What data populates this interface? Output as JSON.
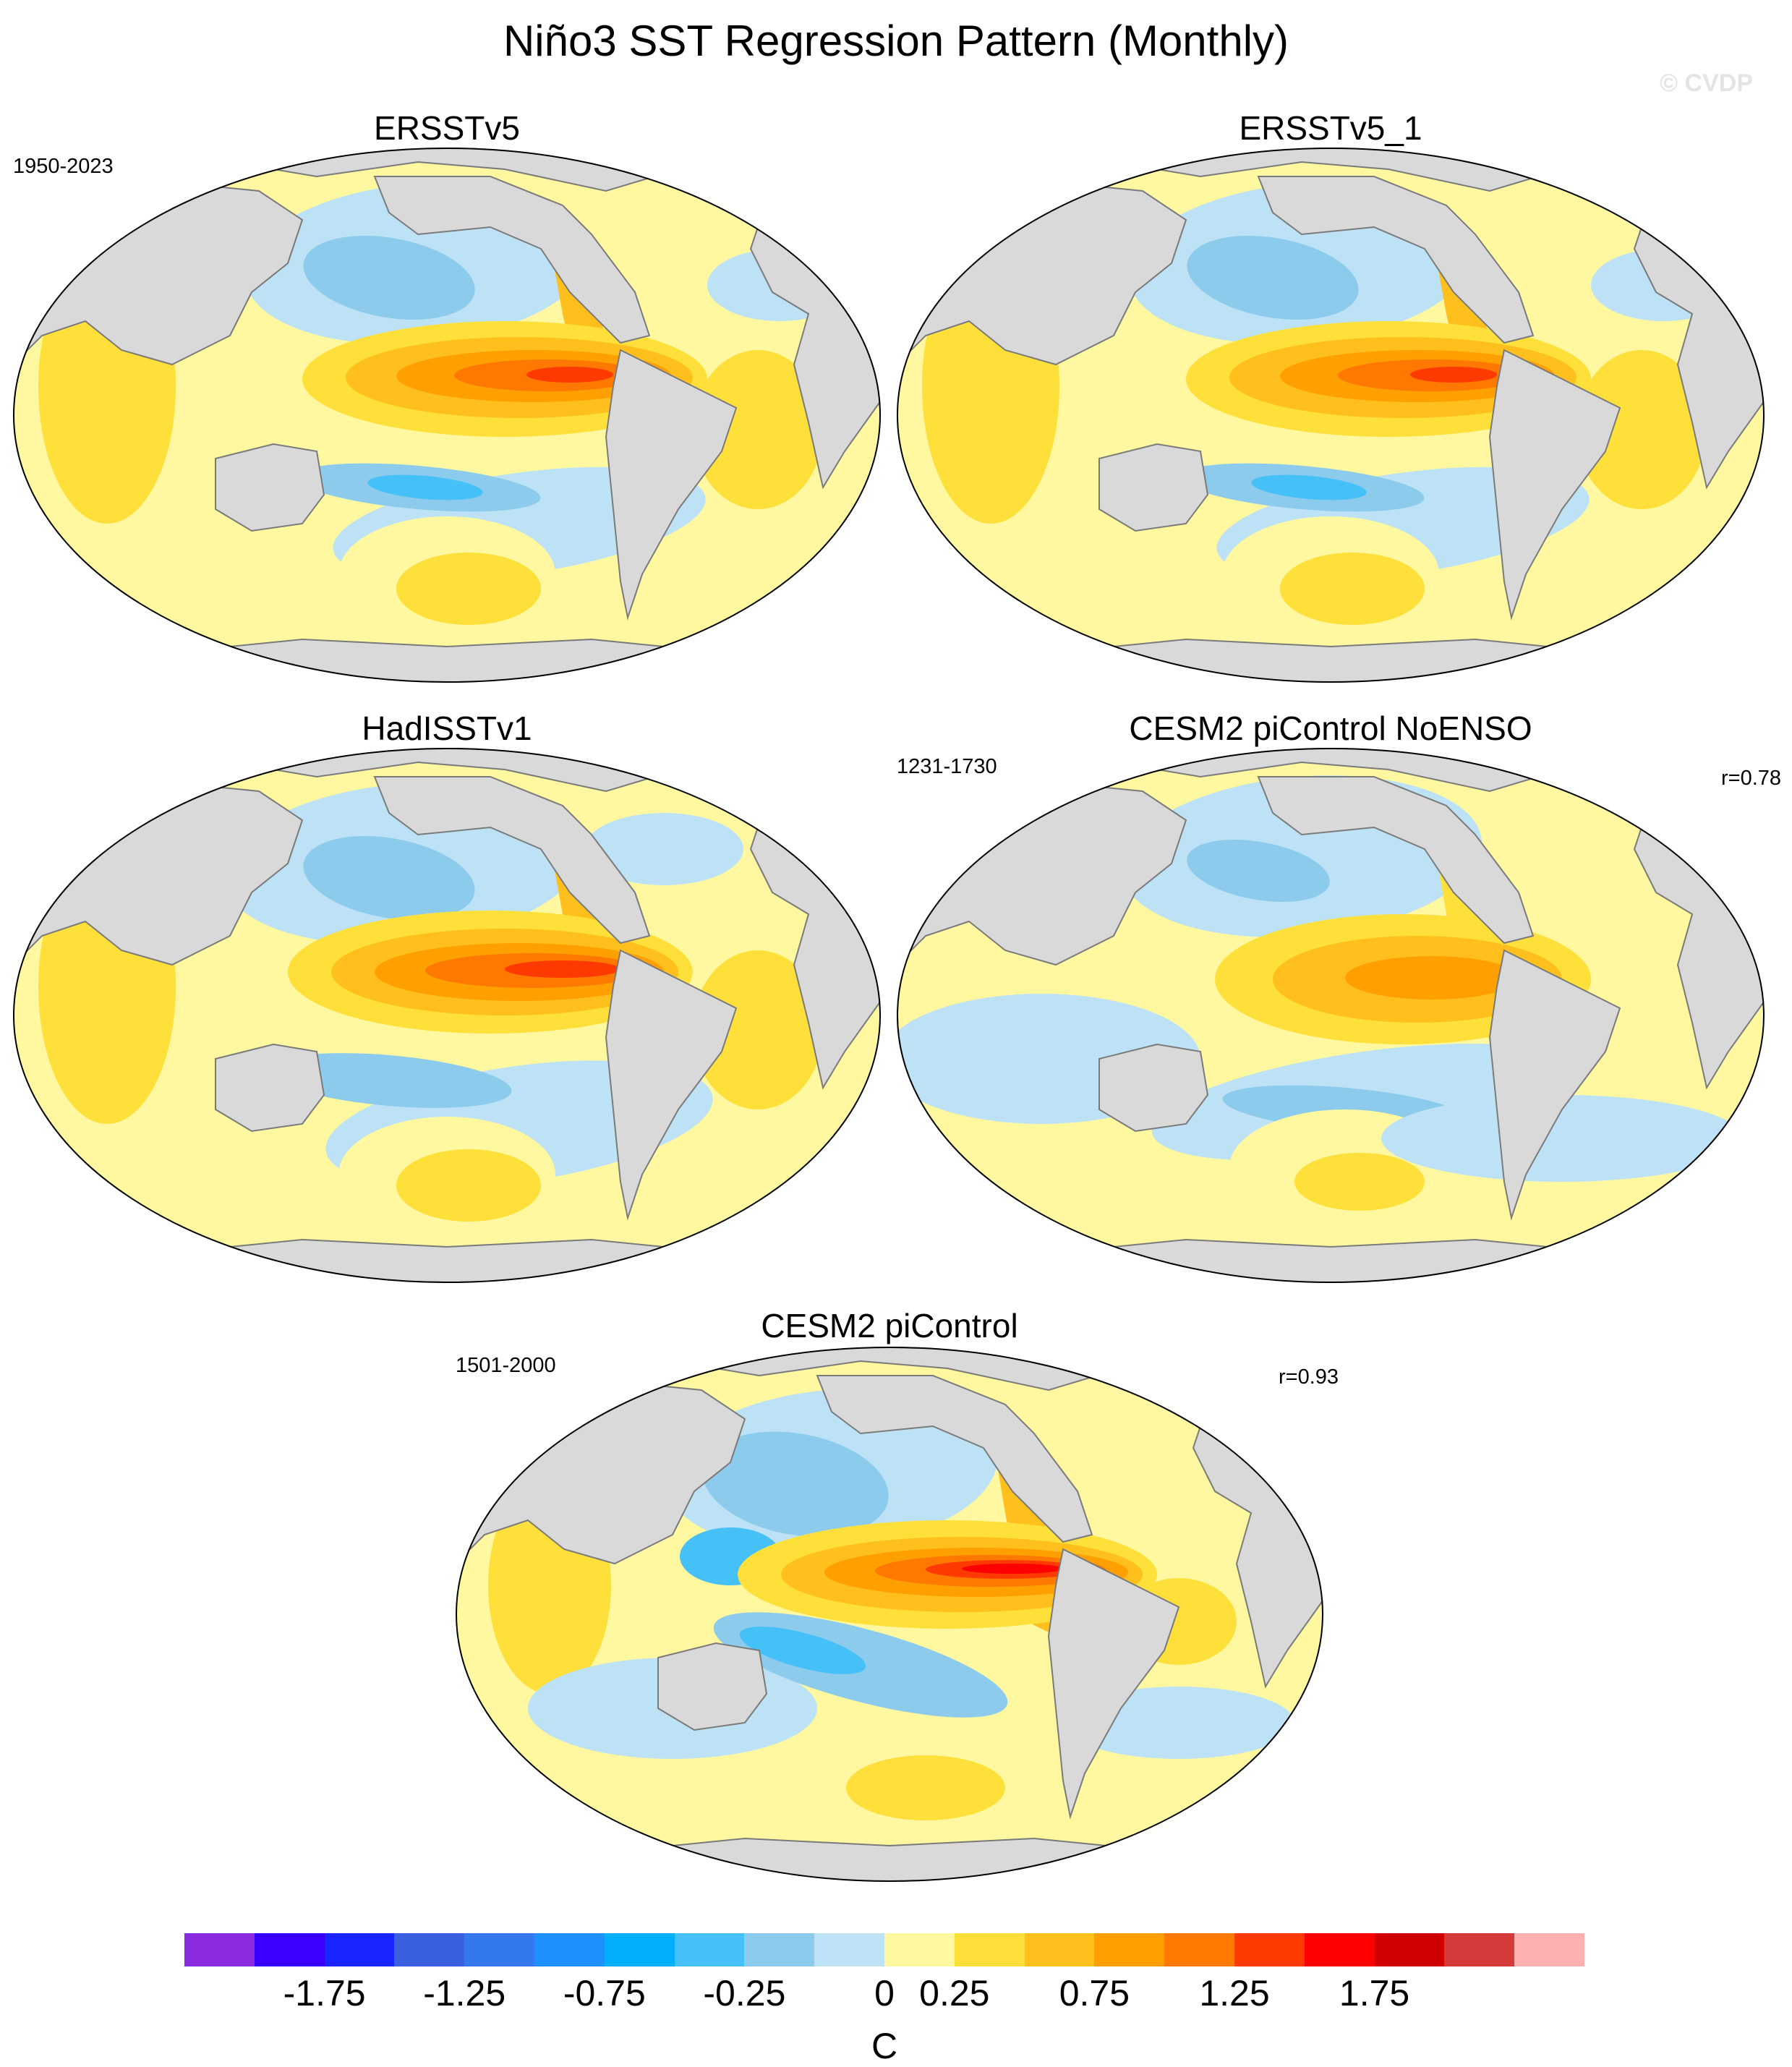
{
  "figure": {
    "title": "Niño3 SST Regression Pattern (Monthly)",
    "watermark": "© CVDP"
  },
  "panels": [
    {
      "id": "ersstv5",
      "title": "ERSSTv5",
      "period": "1950-2023",
      "r": "",
      "pattern": "obs"
    },
    {
      "id": "ersstv5_1",
      "title": "ERSSTv5_1",
      "period": "",
      "r": "",
      "pattern": "obs"
    },
    {
      "id": "hadisstv1",
      "title": "HadISSTv1",
      "period": "",
      "r": "",
      "pattern": "had"
    },
    {
      "id": "cesm2_picontrol_noenso",
      "title": "CESM2 piControl NoENSO",
      "period": "1231-1730",
      "r": "r=0.78",
      "pattern": "weak"
    },
    {
      "id": "cesm2_picontrol",
      "title": "CESM2 piControl",
      "period": "1501-2000",
      "r": "r=0.93",
      "pattern": "strong"
    }
  ],
  "colorbar": {
    "unit": "C",
    "tick_labels": [
      "-1.75",
      "-1.25",
      "-0.75",
      "-0.25",
      "0",
      "0.25",
      "0.75",
      "1.25",
      "1.75"
    ],
    "colors": [
      "#8a2be2",
      "#3a00ff",
      "#1a24ff",
      "#3a60e0",
      "#3478f0",
      "#1e90ff",
      "#00b0ff",
      "#45c1f8",
      "#8ccbec",
      "#bde2f5",
      "#fff8a0",
      "#ffe03a",
      "#ffc01e",
      "#ffa000",
      "#ff7800",
      "#ff3a00",
      "#ff0000",
      "#d00000",
      "#d43a3a",
      "#ffb0b0"
    ]
  },
  "colors": {
    "land": "#d9d9d9",
    "coast": "#7a7a7a",
    "background": "#ffffff"
  }
}
